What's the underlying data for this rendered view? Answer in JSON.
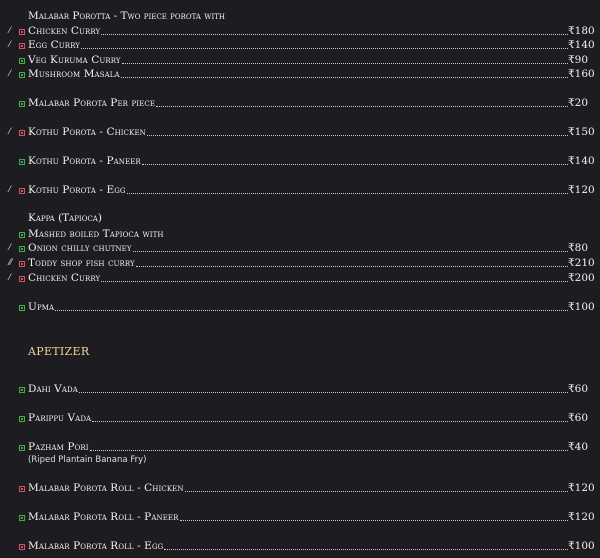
{
  "colors": {
    "background": "#1d1d21",
    "veg": "#3fae49",
    "nonveg": "#d8505e",
    "section": "#f0d38c"
  },
  "headings": [
    "Malabar Porotta - Two piece porota with",
    "Kappa (Tapioca)"
  ],
  "section_title": "APETIZER",
  "items": [
    {
      "name": "Chicken Curry",
      "price": "₹180",
      "type": "nonveg",
      "spicy": 1
    },
    {
      "name": "Egg Curry",
      "price": "₹140",
      "type": "nonveg",
      "spicy": 1
    },
    {
      "name": "Veg Kuruma Curry",
      "price": "₹90",
      "type": "veg",
      "spicy": 0
    },
    {
      "name": "Mushroom Masala",
      "price": "₹160",
      "type": "veg",
      "spicy": 1
    },
    {
      "name": "Malabar Porota Per piece",
      "price": "₹20",
      "type": "veg",
      "spicy": 0
    },
    {
      "name": "Kothu Porota - Chicken",
      "price": "₹150",
      "type": "nonveg",
      "spicy": 1
    },
    {
      "name": "Kothu Porota - Paneer",
      "price": "₹140",
      "type": "veg",
      "spicy": 0
    },
    {
      "name": "Kothu Porota - Egg",
      "price": "₹120",
      "type": "nonveg",
      "spicy": 1
    },
    {
      "name": "Mashed boiled Tapioca with",
      "price": "",
      "type": "veg",
      "spicy": 0
    },
    {
      "name": "Onion chilly chutney",
      "price": "₹80",
      "type": "veg",
      "spicy": 1
    },
    {
      "name": "Toddy shop fish curry",
      "price": "₹210",
      "type": "nonveg",
      "spicy": 2
    },
    {
      "name": "Chicken Curry",
      "price": "₹200",
      "type": "nonveg",
      "spicy": 1
    },
    {
      "name": "Upma",
      "price": "₹100",
      "type": "veg",
      "spicy": 0
    },
    {
      "name": "Dahi Vada",
      "price": "₹60",
      "type": "veg",
      "spicy": 0
    },
    {
      "name": "Parippu Vada",
      "price": "₹60",
      "type": "veg",
      "spicy": 0
    },
    {
      "name": "Pazham Pori",
      "price": "₹40",
      "type": "veg",
      "spicy": 0,
      "note": "(Riped Plantain Banana Fry)"
    },
    {
      "name": "Malabar Porota Roll - Chicken",
      "price": "₹120",
      "type": "nonveg",
      "spicy": 0
    },
    {
      "name": "Malabar Porota Roll - Paneer",
      "price": "₹120",
      "type": "veg",
      "spicy": 0
    },
    {
      "name": "Malabar Porota Roll - Egg",
      "price": "₹100",
      "type": "nonveg",
      "spicy": 0
    }
  ]
}
